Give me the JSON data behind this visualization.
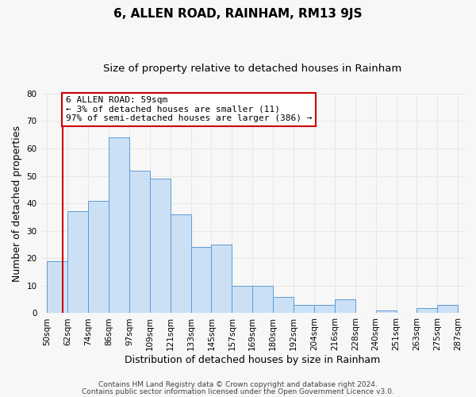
{
  "title": "6, ALLEN ROAD, RAINHAM, RM13 9JS",
  "subtitle": "Size of property relative to detached houses in Rainham",
  "xlabel": "Distribution of detached houses by size in Rainham",
  "ylabel": "Number of detached properties",
  "categories": [
    "50sqm",
    "62sqm",
    "74sqm",
    "86sqm",
    "97sqm",
    "109sqm",
    "121sqm",
    "133sqm",
    "145sqm",
    "157sqm",
    "169sqm",
    "180sqm",
    "192sqm",
    "204sqm",
    "216sqm",
    "228sqm",
    "240sqm",
    "251sqm",
    "263sqm",
    "275sqm",
    "287sqm"
  ],
  "values": [
    19,
    37,
    41,
    64,
    52,
    49,
    36,
    24,
    25,
    10,
    10,
    6,
    3,
    3,
    5,
    0,
    1,
    0,
    2,
    3
  ],
  "bar_color": "#cce0f5",
  "bar_edge_color": "#5b9bd5",
  "annotation_text": "6 ALLEN ROAD: 59sqm\n← 3% of detached houses are smaller (11)\n97% of semi-detached houses are larger (386) →",
  "annotation_box_color": "white",
  "annotation_box_edge_color": "#cc0000",
  "indicator_line_color": "#cc0000",
  "ylim": [
    0,
    80
  ],
  "yticks": [
    0,
    10,
    20,
    30,
    40,
    50,
    60,
    70,
    80
  ],
  "footer_line1": "Contains HM Land Registry data © Crown copyright and database right 2024.",
  "footer_line2": "Contains public sector information licensed under the Open Government Licence v3.0.",
  "background_color": "#f7f7f7",
  "grid_color": "#e8e8e8",
  "title_fontsize": 11,
  "subtitle_fontsize": 9.5,
  "axis_label_fontsize": 9,
  "tick_fontsize": 7.5,
  "annotation_fontsize": 8,
  "footer_fontsize": 6.5
}
